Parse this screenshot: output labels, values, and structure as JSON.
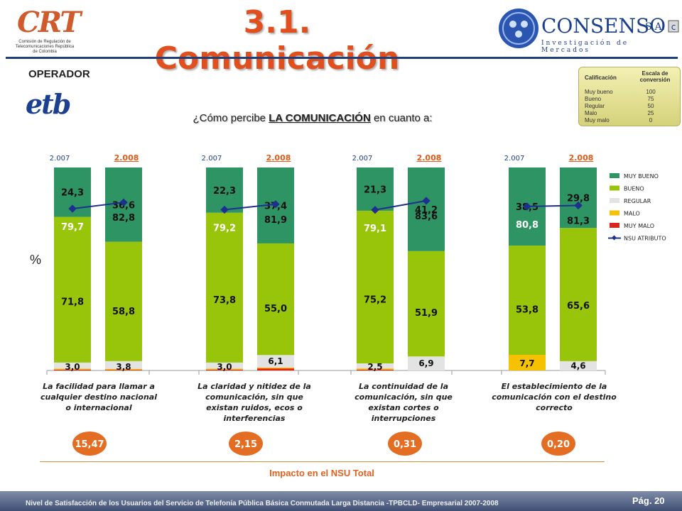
{
  "header": {
    "crt_logo": "CRT",
    "crt_subtitle": "Comisión de Regulación de Telecomunicaciones República de Colombia",
    "title": "3.1. Comunicación",
    "consenso_name": "CONSENSO",
    "consenso_sa": "S.A.",
    "consenso_tagline": "Investigación de Mercados"
  },
  "operator_label": "OPERADOR",
  "operator_logo": "etb",
  "scale": {
    "col1": "Calificación",
    "col2": "Escala de conversión",
    "rows": [
      {
        "name": "Muy bueno",
        "value": "100"
      },
      {
        "name": "Bueno",
        "value": "75"
      },
      {
        "name": "Regular",
        "value": "50"
      },
      {
        "name": "Malo",
        "value": "25"
      },
      {
        "name": "Muy malo",
        "value": "0"
      }
    ]
  },
  "question": {
    "prefix": "¿Cómo percibe ",
    "bold": "LA COMUNICACIÓN",
    "suffix": " en cuanto a:"
  },
  "y_unit": "%",
  "chart_data": {
    "type": "bar",
    "stacked": true,
    "ylim": [
      0,
      100
    ],
    "legend_position": "right",
    "colors": {
      "muy_bueno": "#2e9464",
      "bueno": "#98c50a",
      "regular": "#e3e3e3",
      "malo": "#f6c200",
      "muy_malo": "#e2231a",
      "nsu": "#1f2f8f"
    },
    "legend": [
      "MUY BUENO",
      "BUENO",
      "REGULAR",
      "MALO",
      "MUY MALO",
      "NSU ATRIBUTO"
    ],
    "groups": [
      {
        "label": "La facilidad para llamar a cualquier destino nacional o internacional",
        "impact": "15,47",
        "bars": [
          {
            "year": "2.007",
            "muy_bueno": 24.3,
            "bueno": 71.8,
            "regular": 3.0,
            "malo": 0.5,
            "muy_malo": 0.4,
            "nsu": 79.7,
            "labels": {
              "muy_bueno": "24,3",
              "bueno": "71,8",
              "regular": "3,0",
              "nsu": "79,7"
            }
          },
          {
            "year": "2.008",
            "muy_bueno": 36.6,
            "bueno": 58.8,
            "regular": 3.8,
            "malo": 0.5,
            "muy_malo": 0.3,
            "nsu": 82.8,
            "labels": {
              "muy_bueno": "36,6",
              "bueno": "58,8",
              "regular": "3,8",
              "nsu": "82,8"
            }
          }
        ]
      },
      {
        "label": "La claridad y nitidez de la comunicación, sin que existan ruidos, ecos o interferencias",
        "impact": "2,15",
        "bars": [
          {
            "year": "2.007",
            "muy_bueno": 22.3,
            "bueno": 73.8,
            "regular": 3.0,
            "malo": 0.5,
            "muy_malo": 0.4,
            "nsu": 79.2,
            "labels": {
              "muy_bueno": "22,3",
              "bueno": "73,8",
              "regular": "3,0",
              "nsu": "79,2"
            }
          },
          {
            "year": "2.008",
            "muy_bueno": 37.4,
            "bueno": 55.0,
            "regular": 6.1,
            "malo": 0.5,
            "muy_malo": 1.0,
            "nsu": 81.9,
            "labels": {
              "muy_bueno": "37,4",
              "bueno": "55,0",
              "regular": "6,1",
              "nsu": "81,9"
            }
          }
        ]
      },
      {
        "label": "La continuidad de la comunicación, sin que existan cortes o interrupciones",
        "impact": "0,31",
        "bars": [
          {
            "year": "2.007",
            "muy_bueno": 21.3,
            "bueno": 75.2,
            "regular": 2.5,
            "malo": 0.6,
            "muy_malo": 0.4,
            "nsu": 79.1,
            "labels": {
              "muy_bueno": "21,3",
              "bueno": "75,2",
              "regular": "2,5",
              "nsu": "79,1"
            }
          },
          {
            "year": "2.008",
            "muy_bueno": 41.2,
            "bueno": 51.9,
            "regular": 6.9,
            "malo": 0,
            "muy_malo": 0,
            "nsu": 83.6,
            "labels": {
              "muy_bueno": "41,2",
              "bueno": "51,9",
              "regular": "6,9",
              "nsu": "83,6"
            }
          }
        ]
      },
      {
        "label": "El establecimiento de la comunicación con el destino correcto",
        "impact": "0,20",
        "bars": [
          {
            "year": "2.007",
            "muy_bueno": 38.5,
            "bueno": 53.8,
            "regular": 0,
            "malo": 7.7,
            "muy_malo": 0,
            "nsu": 80.8,
            "labels": {
              "muy_bueno": "38,5",
              "bueno": "53,8",
              "malo": "7,7",
              "nsu": "80,8"
            }
          },
          {
            "year": "2.008",
            "muy_bueno": 29.8,
            "bueno": 65.6,
            "regular": 4.6,
            "malo": 0,
            "muy_malo": 0,
            "nsu": 81.3,
            "labels": {
              "muy_bueno": "29,8",
              "bueno": "65,6",
              "regular": "4,6",
              "nsu": "81,3"
            }
          }
        ]
      }
    ]
  },
  "impact_label": "Impacto en el NSU Total",
  "footer": {
    "text": "Nivel de Satisfacción de los Usuarios del Servicio de Telefonía Pública Básica Conmutada Larga Distancia -TPBCLD- Empresarial 2007-2008",
    "page": "Pág. 20"
  }
}
